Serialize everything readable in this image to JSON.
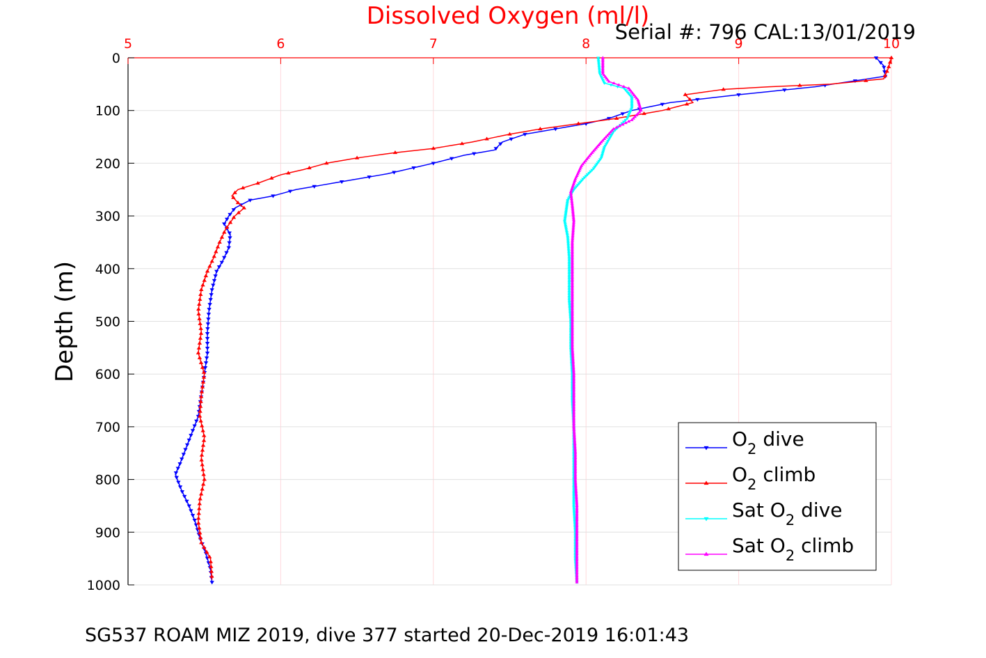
{
  "chart_data": {
    "type": "line",
    "title": "Dissolved Oxygen (ml/l)",
    "subtitle": "Serial #: 796  CAL:13/01/2019",
    "xlabel": "Dissolved Oxygen (ml/l)",
    "ylabel": "Depth (m)",
    "xlim": [
      5,
      10
    ],
    "ylim": [
      0,
      1000
    ],
    "y_reversed": true,
    "x_axis_position": "top",
    "x_ticks": [
      "5",
      "6",
      "7",
      "8",
      "9",
      "10"
    ],
    "y_ticks": [
      "0",
      "100",
      "200",
      "300",
      "400",
      "500",
      "600",
      "700",
      "800",
      "900",
      "1000"
    ],
    "grid": true,
    "legend_position": "bottom-right",
    "series": [
      {
        "name": "O2 dive",
        "legend_main": "O",
        "legend_sub": "2",
        "legend_rest": " dive",
        "color": "#0000ff",
        "marker": "triangle-down",
        "points": [
          [
            9.9,
            0
          ],
          [
            9.95,
            15
          ],
          [
            9.96,
            35
          ],
          [
            9.5,
            55
          ],
          [
            9.0,
            70
          ],
          [
            8.55,
            85
          ],
          [
            8.3,
            100
          ],
          [
            8.15,
            115
          ],
          [
            8.0,
            125
          ],
          [
            7.8,
            135
          ],
          [
            7.6,
            145
          ],
          [
            7.45,
            160
          ],
          [
            7.4,
            175
          ],
          [
            7.2,
            185
          ],
          [
            7.0,
            200
          ],
          [
            6.7,
            220
          ],
          [
            6.4,
            235
          ],
          [
            6.1,
            250
          ],
          [
            5.95,
            262
          ],
          [
            5.8,
            270
          ],
          [
            5.7,
            285
          ],
          [
            5.66,
            300
          ],
          [
            5.63,
            315
          ],
          [
            5.67,
            335
          ],
          [
            5.66,
            360
          ],
          [
            5.62,
            385
          ],
          [
            5.58,
            405
          ],
          [
            5.55,
            440
          ],
          [
            5.53,
            480
          ],
          [
            5.52,
            520
          ],
          [
            5.52,
            560
          ],
          [
            5.5,
            600
          ],
          [
            5.48,
            640
          ],
          [
            5.46,
            680
          ],
          [
            5.42,
            710
          ],
          [
            5.38,
            740
          ],
          [
            5.34,
            770
          ],
          [
            5.31,
            790
          ],
          [
            5.35,
            820
          ],
          [
            5.4,
            850
          ],
          [
            5.44,
            880
          ],
          [
            5.47,
            910
          ],
          [
            5.51,
            940
          ],
          [
            5.54,
            970
          ],
          [
            5.55,
            995
          ]
        ]
      },
      {
        "name": "O2 climb",
        "legend_main": "O",
        "legend_sub": "2",
        "legend_rest": " climb",
        "color": "#ff0000",
        "marker": "triangle-up",
        "points": [
          [
            10.0,
            0
          ],
          [
            9.98,
            20
          ],
          [
            9.95,
            40
          ],
          [
            9.6,
            50
          ],
          [
            9.2,
            55
          ],
          [
            8.9,
            60
          ],
          [
            8.65,
            70
          ],
          [
            8.7,
            85
          ],
          [
            8.5,
            100
          ],
          [
            8.2,
            115
          ],
          [
            7.95,
            125
          ],
          [
            7.7,
            135
          ],
          [
            7.5,
            145
          ],
          [
            7.25,
            160
          ],
          [
            7.0,
            172
          ],
          [
            6.75,
            180
          ],
          [
            6.5,
            190
          ],
          [
            6.3,
            200
          ],
          [
            6.15,
            212
          ],
          [
            6.0,
            222
          ],
          [
            5.85,
            238
          ],
          [
            5.72,
            250
          ],
          [
            5.68,
            262
          ],
          [
            5.72,
            275
          ],
          [
            5.76,
            285
          ],
          [
            5.7,
            300
          ],
          [
            5.64,
            325
          ],
          [
            5.6,
            350
          ],
          [
            5.56,
            380
          ],
          [
            5.52,
            405
          ],
          [
            5.48,
            440
          ],
          [
            5.46,
            480
          ],
          [
            5.48,
            520
          ],
          [
            5.46,
            560
          ],
          [
            5.5,
            600
          ],
          [
            5.48,
            640
          ],
          [
            5.47,
            680
          ],
          [
            5.5,
            720
          ],
          [
            5.48,
            760
          ],
          [
            5.5,
            800
          ],
          [
            5.47,
            840
          ],
          [
            5.46,
            880
          ],
          [
            5.48,
            920
          ],
          [
            5.54,
            950
          ],
          [
            5.55,
            990
          ]
        ]
      },
      {
        "name": "Sat O2 dive",
        "legend_main": "Sat O",
        "legend_sub": "2",
        "legend_rest": " dive",
        "color": "#00ffff",
        "marker": "triangle-down",
        "points": [
          [
            8.08,
            0
          ],
          [
            8.09,
            30
          ],
          [
            8.12,
            48
          ],
          [
            8.25,
            58
          ],
          [
            8.3,
            75
          ],
          [
            8.3,
            95
          ],
          [
            8.27,
            115
          ],
          [
            8.18,
            140
          ],
          [
            8.12,
            170
          ],
          [
            8.1,
            190
          ],
          [
            8.05,
            210
          ],
          [
            7.98,
            230
          ],
          [
            7.92,
            250
          ],
          [
            7.88,
            270
          ],
          [
            7.87,
            290
          ],
          [
            7.86,
            310
          ],
          [
            7.88,
            340
          ],
          [
            7.89,
            380
          ],
          [
            7.89,
            420
          ],
          [
            7.89,
            460
          ],
          [
            7.9,
            500
          ],
          [
            7.9,
            550
          ],
          [
            7.91,
            600
          ],
          [
            7.91,
            650
          ],
          [
            7.92,
            700
          ],
          [
            7.92,
            750
          ],
          [
            7.92,
            800
          ],
          [
            7.92,
            850
          ],
          [
            7.93,
            900
          ],
          [
            7.93,
            950
          ],
          [
            7.94,
            995
          ]
        ]
      },
      {
        "name": "Sat O2 climb",
        "legend_main": "Sat O",
        "legend_sub": "2",
        "legend_rest": " climb",
        "color": "#ff00ff",
        "marker": "triangle-up",
        "points": [
          [
            8.11,
            0
          ],
          [
            8.11,
            30
          ],
          [
            8.15,
            45
          ],
          [
            8.28,
            58
          ],
          [
            8.34,
            80
          ],
          [
            8.36,
            100
          ],
          [
            8.3,
            118
          ],
          [
            8.18,
            135
          ],
          [
            8.1,
            160
          ],
          [
            8.04,
            180
          ],
          [
            7.97,
            205
          ],
          [
            7.93,
            230
          ],
          [
            7.9,
            255
          ],
          [
            7.91,
            280
          ],
          [
            7.92,
            310
          ],
          [
            7.91,
            350
          ],
          [
            7.91,
            400
          ],
          [
            7.91,
            450
          ],
          [
            7.91,
            500
          ],
          [
            7.91,
            550
          ],
          [
            7.92,
            600
          ],
          [
            7.92,
            650
          ],
          [
            7.92,
            700
          ],
          [
            7.93,
            750
          ],
          [
            7.93,
            800
          ],
          [
            7.94,
            850
          ],
          [
            7.94,
            900
          ],
          [
            7.94,
            950
          ],
          [
            7.94,
            995
          ]
        ]
      }
    ]
  },
  "footer": "SG537 ROAM MIZ 2019, dive 377 started 20-Dec-2019 16:01:43"
}
